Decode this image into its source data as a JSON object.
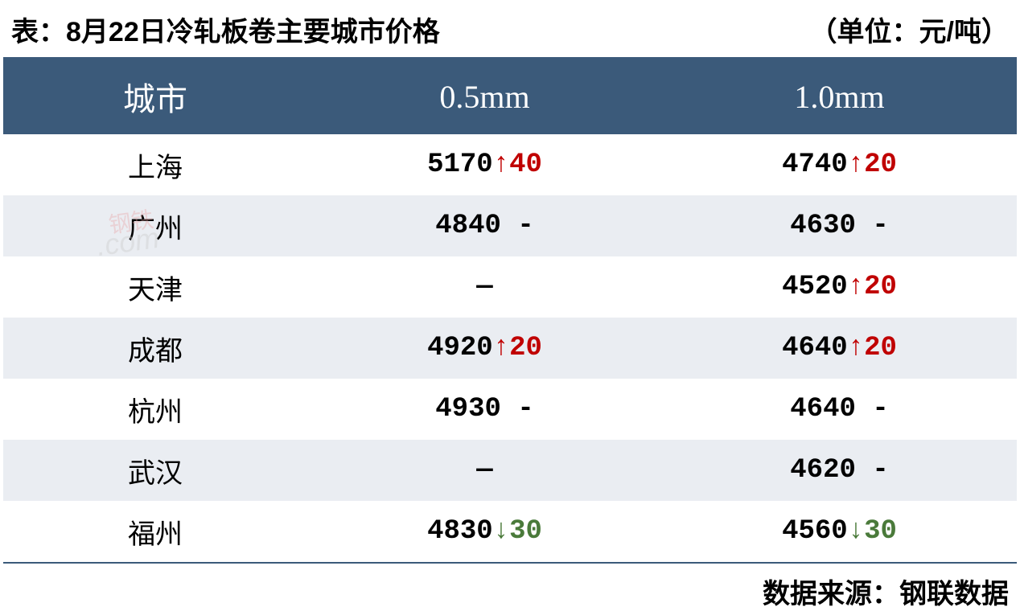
{
  "title": "表：8月22日冷轧板卷主要城市价格",
  "unit": "（单位：元/吨）",
  "source": "数据来源：钢联数据",
  "watermark_text": ".com",
  "watermark_cn": "钢铁",
  "table": {
    "type": "table",
    "header_bg": "#3b5a7a",
    "header_color": "#ffffff",
    "row_alt_bg": "#eaedf2",
    "row_bg": "#ffffff",
    "up_color": "#c00000",
    "down_color": "#4a7a3a",
    "text_color": "#000000",
    "border_color": "#3b5a7a",
    "header_fontsize": 40,
    "cell_fontsize": 34,
    "columns": [
      "城市",
      "0.5mm",
      "1.0mm"
    ],
    "rows": [
      {
        "city": "上海",
        "c05": {
          "price": "5170",
          "dir": "up",
          "change": "40"
        },
        "c10": {
          "price": "4740",
          "dir": "up",
          "change": "20"
        }
      },
      {
        "city": "广州",
        "c05": {
          "price": "4840",
          "dir": "none",
          "change": "-"
        },
        "c10": {
          "price": "4630",
          "dir": "none",
          "change": "-"
        }
      },
      {
        "city": "天津",
        "c05": {
          "price": "—",
          "dir": "empty",
          "change": ""
        },
        "c10": {
          "price": "4520",
          "dir": "up",
          "change": "20"
        }
      },
      {
        "city": "成都",
        "c05": {
          "price": "4920",
          "dir": "up",
          "change": "20"
        },
        "c10": {
          "price": "4640",
          "dir": "up",
          "change": "20"
        }
      },
      {
        "city": "杭州",
        "c05": {
          "price": "4930",
          "dir": "none",
          "change": "-"
        },
        "c10": {
          "price": "4640",
          "dir": "none",
          "change": "-"
        }
      },
      {
        "city": "武汉",
        "c05": {
          "price": "—",
          "dir": "empty",
          "change": ""
        },
        "c10": {
          "price": "4620",
          "dir": "none",
          "change": "-"
        }
      },
      {
        "city": "福州",
        "c05": {
          "price": "4830",
          "dir": "down",
          "change": "30"
        },
        "c10": {
          "price": "4560",
          "dir": "down",
          "change": "30"
        }
      }
    ]
  }
}
